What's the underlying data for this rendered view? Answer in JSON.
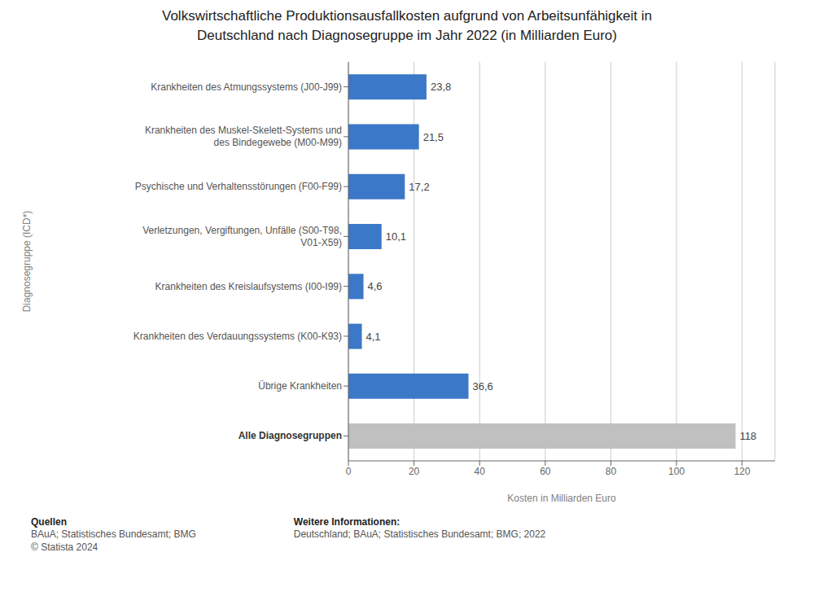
{
  "chart_data": {
    "type": "bar",
    "orientation": "horizontal",
    "title": "Volkswirtschaftliche Produktionsausfallkosten aufgrund von Arbeitsunfähigkeit in\nDeutschland nach Diagnosegruppe im Jahr 2022 (in Milliarden Euro)",
    "categories": [
      "Krankheiten des Atmungssystems (J00-J99)",
      "Krankheiten des Muskel-Skelett-Systems und\ndes Bindegewebe (M00-M99)",
      "Psychische und Verhaltensstörungen (F00-F99)",
      "Verletzungen, Vergiftungen, Unfälle (S00-T98,\nV01-X59)",
      "Krankheiten des Kreislaufsystems (I00-I99)",
      "Krankheiten des Verdauungssystems (K00-K93)",
      "Übrige Krankheiten",
      "Alle Diagnosegruppen"
    ],
    "values": [
      23.8,
      21.5,
      17.2,
      10.1,
      4.6,
      4.1,
      36.6,
      118.0
    ],
    "value_labels": [
      "23,8",
      "21,5",
      "17,2",
      "10,1",
      "4,6",
      "4,1",
      "36,6",
      "118"
    ],
    "data_labels": true,
    "colors": [
      "#3c78c8",
      "#3c78c8",
      "#3c78c8",
      "#3c78c8",
      "#3c78c8",
      "#3c78c8",
      "#3c78c8",
      "#c0c0c0"
    ],
    "ylabel": "Diagnosegruppe (ICD*)",
    "xlabel": "Kosten in Milliarden Euro",
    "xlim": [
      0,
      130
    ],
    "xticks": [
      0,
      20,
      40,
      60,
      80,
      100,
      120
    ],
    "grid": true,
    "annotations": [
      "Quellen",
      "BAuA; Statistisches Bundesamt; BMG\n© Statista 2024",
      "Weitere Informationen:",
      "Deutschland; BAuA; Statistisches Bundesamt; BMG; 2022"
    ]
  }
}
